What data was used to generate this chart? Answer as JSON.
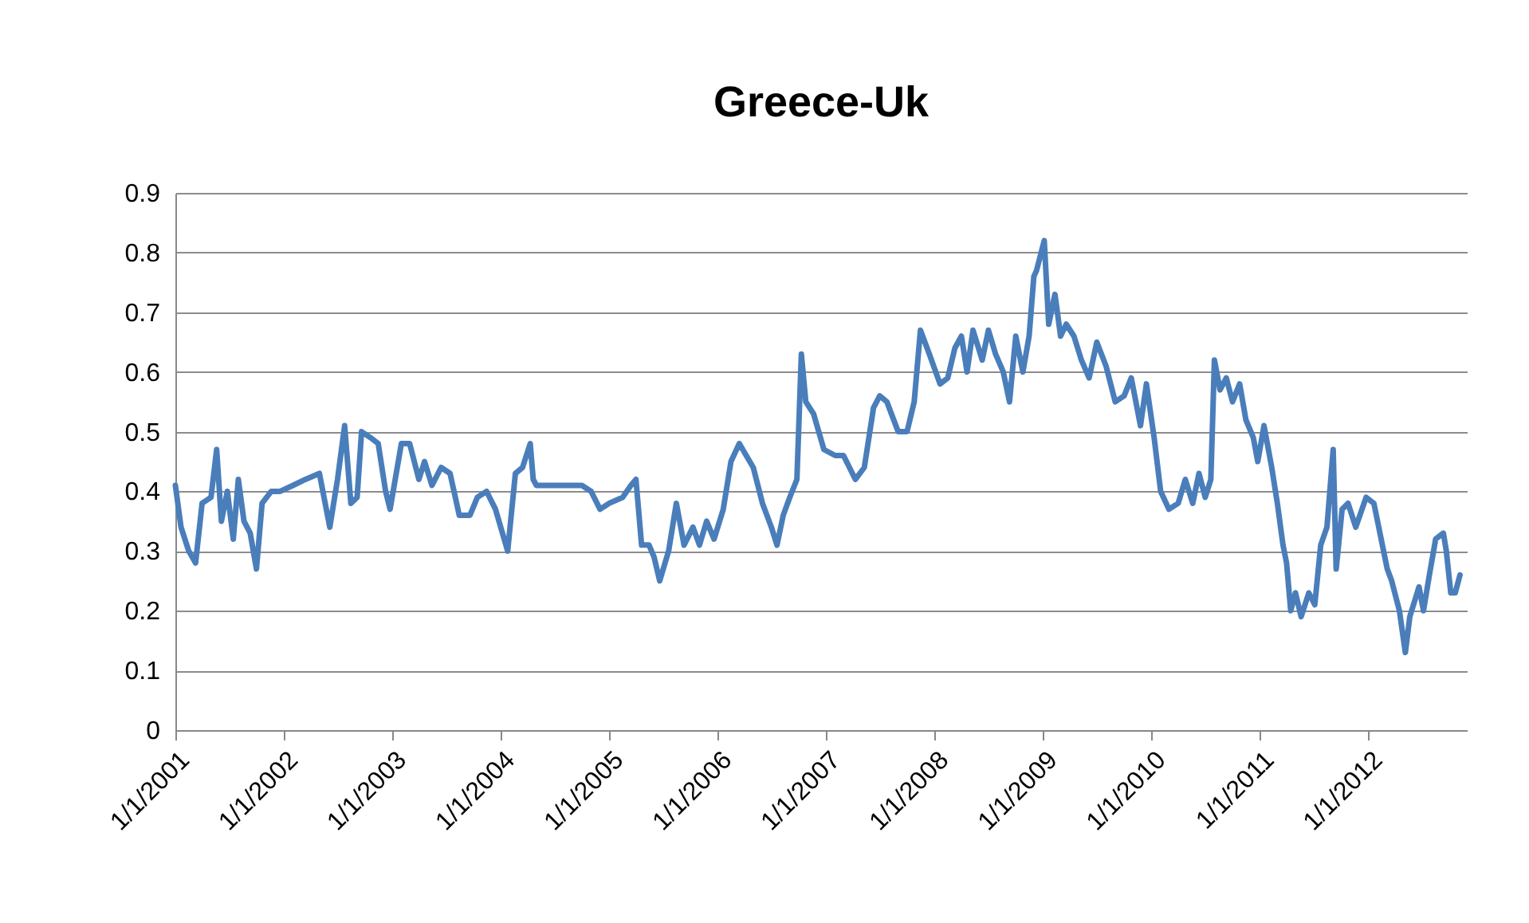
{
  "chart_data": {
    "type": "line",
    "title": "Greece-Uk",
    "x": [
      "2001-01-01",
      "2001-01-20",
      "2001-02-15",
      "2001-03-10",
      "2001-04-01",
      "2001-05-01",
      "2001-05-20",
      "2001-06-05",
      "2001-06-25",
      "2001-07-15",
      "2001-08-01",
      "2001-08-20",
      "2001-09-10",
      "2001-10-01",
      "2001-10-20",
      "2001-11-20",
      "2001-12-20",
      "2002-02-01",
      "2002-03-15",
      "2002-05-01",
      "2002-06-05",
      "2002-07-01",
      "2002-07-25",
      "2002-08-15",
      "2002-09-05",
      "2002-09-20",
      "2002-10-20",
      "2002-11-15",
      "2002-12-10",
      "2002-12-25",
      "2003-02-01",
      "2003-03-01",
      "2003-04-01",
      "2003-04-20",
      "2003-05-15",
      "2003-06-15",
      "2003-07-15",
      "2003-08-15",
      "2003-09-20",
      "2003-10-15",
      "2003-11-15",
      "2003-12-15",
      "2004-01-25",
      "2004-02-20",
      "2004-03-15",
      "2004-04-10",
      "2004-04-20",
      "2004-05-01",
      "2004-10-01",
      "2004-11-01",
      "2004-12-01",
      "2005-01-01",
      "2005-02-15",
      "2005-03-15",
      "2005-04-01",
      "2005-04-20",
      "2005-05-15",
      "2005-06-01",
      "2005-06-20",
      "2005-07-20",
      "2005-08-15",
      "2005-09-10",
      "2005-10-10",
      "2005-11-01",
      "2005-11-25",
      "2005-12-20",
      "2006-01-20",
      "2006-02-15",
      "2006-03-15",
      "2006-05-01",
      "2006-06-01",
      "2006-07-01",
      "2006-07-20",
      "2006-08-10",
      "2006-09-01",
      "2006-09-25",
      "2006-10-10",
      "2006-10-25",
      "2006-11-20",
      "2006-12-25",
      "2007-02-01",
      "2007-03-01",
      "2007-04-10",
      "2007-05-10",
      "2007-06-10",
      "2007-07-01",
      "2007-07-25",
      "2007-09-01",
      "2007-10-01",
      "2007-10-25",
      "2007-11-15",
      "2007-12-15",
      "2008-01-20",
      "2008-02-15",
      "2008-03-10",
      "2008-04-01",
      "2008-04-20",
      "2008-05-10",
      "2008-06-10",
      "2008-07-01",
      "2008-07-25",
      "2008-08-20",
      "2008-09-10",
      "2008-10-01",
      "2008-10-25",
      "2008-11-15",
      "2008-12-01",
      "2008-12-10",
      "2009-01-05",
      "2009-01-20",
      "2009-02-10",
      "2009-03-01",
      "2009-03-20",
      "2009-04-15",
      "2009-05-10",
      "2009-06-05",
      "2009-07-01",
      "2009-08-01",
      "2009-09-01",
      "2009-10-01",
      "2009-10-25",
      "2009-11-25",
      "2009-12-15",
      "2010-01-10",
      "2010-02-01",
      "2010-03-01",
      "2010-04-01",
      "2010-04-25",
      "2010-05-20",
      "2010-06-10",
      "2010-07-01",
      "2010-07-20",
      "2010-08-01",
      "2010-08-20",
      "2010-09-10",
      "2010-10-01",
      "2010-10-25",
      "2010-11-15",
      "2010-12-10",
      "2010-12-25",
      "2011-01-15",
      "2011-02-10",
      "2011-03-01",
      "2011-03-20",
      "2011-04-01",
      "2011-04-15",
      "2011-05-01",
      "2011-05-20",
      "2011-06-15",
      "2011-07-05",
      "2011-07-25",
      "2011-08-15",
      "2011-09-05",
      "2011-09-15",
      "2011-10-05",
      "2011-10-25",
      "2011-11-20",
      "2011-12-25",
      "2012-01-20",
      "2012-03-05",
      "2012-03-20",
      "2012-04-15",
      "2012-05-05",
      "2012-05-20",
      "2012-06-20",
      "2012-07-05",
      "2012-07-25",
      "2012-08-15",
      "2012-09-10",
      "2012-09-20",
      "2012-10-05",
      "2012-10-20",
      "2012-11-05"
    ],
    "series": [
      {
        "color": "#4a7ebb",
        "values": [
          0.41,
          0.34,
          0.3,
          0.28,
          0.38,
          0.39,
          0.47,
          0.35,
          0.4,
          0.32,
          0.42,
          0.35,
          0.33,
          0.27,
          0.38,
          0.4,
          0.4,
          0.41,
          0.42,
          0.43,
          0.34,
          0.42,
          0.51,
          0.38,
          0.39,
          0.5,
          0.49,
          0.48,
          0.4,
          0.37,
          0.48,
          0.48,
          0.42,
          0.45,
          0.41,
          0.44,
          0.43,
          0.36,
          0.36,
          0.39,
          0.4,
          0.37,
          0.3,
          0.43,
          0.44,
          0.48,
          0.42,
          0.41,
          0.41,
          0.4,
          0.37,
          0.38,
          0.39,
          0.41,
          0.42,
          0.31,
          0.31,
          0.29,
          0.25,
          0.3,
          0.38,
          0.31,
          0.34,
          0.31,
          0.35,
          0.32,
          0.37,
          0.45,
          0.48,
          0.44,
          0.38,
          0.34,
          0.31,
          0.36,
          0.39,
          0.42,
          0.63,
          0.55,
          0.53,
          0.47,
          0.46,
          0.46,
          0.42,
          0.44,
          0.54,
          0.56,
          0.55,
          0.5,
          0.5,
          0.55,
          0.67,
          0.63,
          0.58,
          0.59,
          0.64,
          0.66,
          0.6,
          0.67,
          0.62,
          0.67,
          0.63,
          0.6,
          0.55,
          0.66,
          0.6,
          0.66,
          0.76,
          0.77,
          0.82,
          0.68,
          0.73,
          0.66,
          0.68,
          0.66,
          0.62,
          0.59,
          0.65,
          0.61,
          0.55,
          0.56,
          0.59,
          0.51,
          0.58,
          0.49,
          0.4,
          0.37,
          0.38,
          0.42,
          0.38,
          0.43,
          0.39,
          0.42,
          0.62,
          0.57,
          0.59,
          0.55,
          0.58,
          0.52,
          0.49,
          0.45,
          0.51,
          0.44,
          0.38,
          0.31,
          0.28,
          0.2,
          0.23,
          0.19,
          0.23,
          0.21,
          0.31,
          0.34,
          0.47,
          0.27,
          0.37,
          0.38,
          0.34,
          0.39,
          0.38,
          0.27,
          0.25,
          0.2,
          0.13,
          0.19,
          0.24,
          0.2,
          0.26,
          0.32,
          0.33,
          0.3,
          0.23,
          0.23,
          0.26
        ]
      }
    ],
    "xlim": [
      "2001-01-01",
      "2012-11-28"
    ],
    "xticks": [
      {
        "value": "2001-01-01",
        "label": "1/1/2001"
      },
      {
        "value": "2002-01-01",
        "label": "1/1/2002"
      },
      {
        "value": "2003-01-01",
        "label": "1/1/2003"
      },
      {
        "value": "2004-01-01",
        "label": "1/1/2004"
      },
      {
        "value": "2005-01-01",
        "label": "1/1/2005"
      },
      {
        "value": "2006-01-01",
        "label": "1/1/2006"
      },
      {
        "value": "2007-01-01",
        "label": "1/1/2007"
      },
      {
        "value": "2008-01-01",
        "label": "1/1/2008"
      },
      {
        "value": "2009-01-01",
        "label": "1/1/2009"
      },
      {
        "value": "2010-01-01",
        "label": "1/1/2010"
      },
      {
        "value": "2011-01-01",
        "label": "1/1/2011"
      },
      {
        "value": "2012-01-01",
        "label": "1/1/2012"
      }
    ],
    "ylim": [
      0,
      0.9
    ],
    "yticks": [
      0,
      0.1,
      0.2,
      0.3,
      0.4,
      0.5,
      0.6,
      0.7,
      0.8,
      0.9
    ],
    "grid": "y",
    "marker": "none",
    "line_style": "solid"
  }
}
